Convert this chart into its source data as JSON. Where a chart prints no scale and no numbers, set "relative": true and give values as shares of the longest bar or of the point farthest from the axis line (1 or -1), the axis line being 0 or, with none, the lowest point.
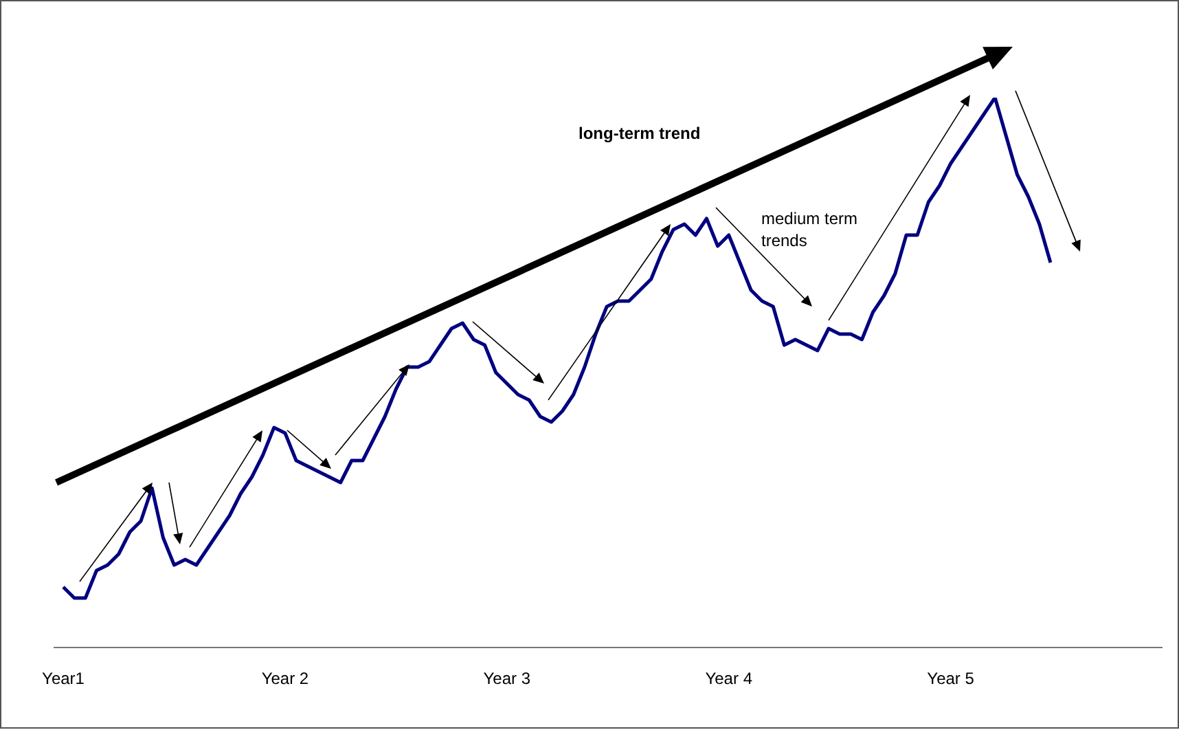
{
  "chart_data": {
    "type": "line",
    "relative": true,
    "color": "#000080",
    "categories": [
      "Year1",
      null,
      null,
      null,
      null,
      null,
      null,
      null,
      null,
      null,
      null,
      null,
      null,
      null,
      null,
      null,
      null,
      null,
      null,
      null,
      "Year 2",
      null,
      null,
      null,
      null,
      null,
      null,
      null,
      null,
      null,
      null,
      null,
      null,
      null,
      null,
      null,
      null,
      null,
      null,
      null,
      "Year 3",
      null,
      null,
      null,
      null,
      null,
      null,
      null,
      null,
      null,
      null,
      null,
      null,
      null,
      null,
      null,
      null,
      null,
      null,
      null,
      "Year 4",
      null,
      null,
      null,
      null,
      null,
      null,
      null,
      null,
      null,
      null,
      null,
      null,
      null,
      null,
      null,
      null,
      null,
      null,
      null,
      "Year 5",
      null,
      null,
      null,
      null,
      null,
      null,
      null,
      null,
      null
    ],
    "values": [
      0.11,
      0.09,
      0.09,
      0.14,
      0.15,
      0.17,
      0.21,
      0.23,
      0.29,
      0.2,
      0.15,
      0.16,
      0.15,
      0.18,
      0.21,
      0.24,
      0.28,
      0.31,
      0.35,
      0.4,
      0.39,
      0.34,
      0.33,
      0.32,
      0.31,
      0.3,
      0.34,
      0.34,
      0.38,
      0.42,
      0.47,
      0.51,
      0.51,
      0.52,
      0.55,
      0.58,
      0.59,
      0.56,
      0.55,
      0.5,
      0.48,
      0.46,
      0.45,
      0.42,
      0.41,
      0.43,
      0.46,
      0.51,
      0.57,
      0.62,
      0.63,
      0.63,
      0.65,
      0.67,
      0.72,
      0.76,
      0.77,
      0.75,
      0.78,
      0.73,
      0.75,
      0.7,
      0.65,
      0.63,
      0.62,
      0.55,
      0.56,
      0.55,
      0.54,
      0.58,
      0.57,
      0.57,
      0.56,
      0.61,
      0.64,
      0.68,
      0.75,
      0.75,
      0.81,
      0.84,
      0.88,
      0.91,
      0.94,
      0.97,
      1.0,
      0.93,
      0.86,
      0.82,
      0.77,
      0.7
    ],
    "annotations": [
      "long-term trend",
      "medium term trends"
    ]
  }
}
